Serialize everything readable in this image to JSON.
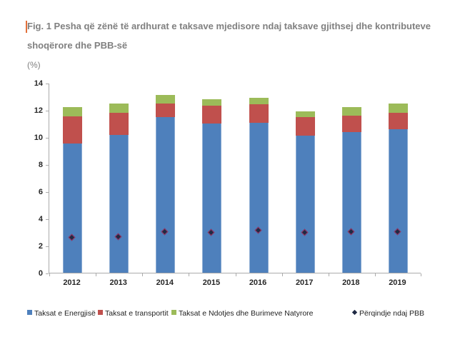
{
  "header": {
    "title_line1": "Fig. 1 Pesha që zënë të ardhurat e taksave mjedisore ndaj taksave gjithsej dhe kontributeve",
    "title_line2": "shoqërore dhe PBB-së",
    "unit_label": "(%)"
  },
  "colors": {
    "energy_blue": "#4e80bc",
    "transport_red": "#c0504d",
    "pollution_green": "#9cbb59",
    "pbb_diamond": "#1f2a44",
    "title_gray": "#808080",
    "axis_gray": "#ababab",
    "change_bar_orange": "#e2703a"
  },
  "chart_data": {
    "type": "bar",
    "stacked": true,
    "title": "Fig. 1 Pesha që zënë të ardhurat e taksave mjedisore ndaj taksave gjithsej dhe kontributeve shoqërore dhe PBB-së",
    "ylabel": "(%)",
    "xlabel": "",
    "ylim": [
      0,
      14
    ],
    "y_ticks": [
      0,
      2,
      4,
      6,
      8,
      10,
      12,
      14
    ],
    "grid": false,
    "legend_position": "bottom",
    "categories": [
      "2012",
      "2013",
      "2014",
      "2015",
      "2016",
      "2017",
      "2018",
      "2019"
    ],
    "series": [
      {
        "name": "Taksat e Energjisë",
        "kind": "bar",
        "color": "#4e80bc",
        "values": [
          9.55,
          10.15,
          11.45,
          11.0,
          11.05,
          10.1,
          10.35,
          10.6
        ]
      },
      {
        "name": "Taksat e transportit",
        "kind": "bar",
        "color": "#c0504d",
        "values": [
          2.0,
          1.65,
          1.05,
          1.3,
          1.35,
          1.35,
          1.25,
          1.2
        ]
      },
      {
        "name": "Taksat e Ndotjes dhe Burimeve Natyrore",
        "kind": "bar",
        "color": "#9cbb59",
        "values": [
          0.65,
          0.65,
          0.6,
          0.5,
          0.5,
          0.45,
          0.6,
          0.7
        ]
      },
      {
        "name": "Përqindje ndaj PBB",
        "kind": "scatter-diamond",
        "color": "#1f2a44",
        "values": [
          2.6,
          2.65,
          3.05,
          2.95,
          3.15,
          3.0,
          3.05,
          3.05
        ]
      }
    ],
    "stack_totals": [
      12.2,
      12.45,
      13.1,
      12.8,
      12.9,
      11.9,
      12.2,
      12.5
    ]
  }
}
